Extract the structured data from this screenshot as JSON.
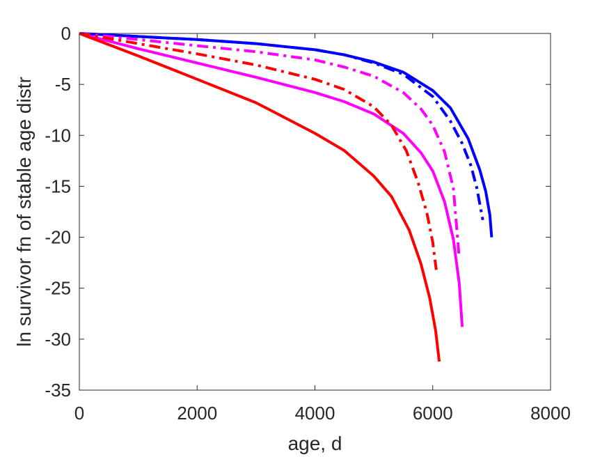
{
  "chart_data": {
    "type": "line",
    "title": "",
    "xlabel": "age, d",
    "ylabel": "ln survivor fn of stable age distr",
    "xlim": [
      0,
      8000
    ],
    "ylim": [
      -35,
      0
    ],
    "xticks": [
      0,
      2000,
      4000,
      6000,
      8000
    ],
    "yticks": [
      0,
      -5,
      -10,
      -15,
      -20,
      -25,
      -30,
      -35
    ],
    "xtick_labels": [
      "0",
      "2000",
      "4000",
      "6000",
      "8000"
    ],
    "ytick_labels": [
      "0",
      "-5",
      "-10",
      "-15",
      "-20",
      "-25",
      "-30",
      "-35"
    ],
    "grid": false,
    "legend": "none",
    "series": [
      {
        "color": "#0000ff",
        "dash": "solid",
        "x": [
          0,
          1000,
          2000,
          3000,
          4000,
          4500,
          5000,
          5500,
          6000,
          6300,
          6600,
          6800,
          6900,
          6970,
          7000
        ],
        "y": [
          0,
          -0.3,
          -0.6,
          -1.0,
          -1.6,
          -2.1,
          -2.8,
          -3.8,
          -5.6,
          -7.3,
          -10.3,
          -13.4,
          -15.5,
          -17.8,
          -20.0
        ]
      },
      {
        "color": "#0000ff",
        "dash": "dashdot",
        "x": [
          0,
          1000,
          2000,
          3000,
          4000,
          4500,
          5000,
          5500,
          6000,
          6300,
          6500,
          6650,
          6750,
          6850
        ],
        "y": [
          0,
          -0.3,
          -0.6,
          -1.0,
          -1.6,
          -2.1,
          -2.9,
          -4.0,
          -6.2,
          -8.6,
          -10.8,
          -13.0,
          -15.2,
          -18.3
        ]
      },
      {
        "color": "#ff00ff",
        "dash": "solid",
        "x": [
          0,
          1000,
          2000,
          3000,
          4000,
          4500,
          5000,
          5500,
          5800,
          6000,
          6200,
          6350,
          6450,
          6500
        ],
        "y": [
          0,
          -1.5,
          -2.9,
          -4.3,
          -5.8,
          -6.7,
          -7.9,
          -9.8,
          -11.7,
          -13.5,
          -16.5,
          -20.2,
          -24.5,
          -28.8
        ]
      },
      {
        "color": "#ff00ff",
        "dash": "dashdot",
        "x": [
          0,
          1000,
          2000,
          3000,
          4000,
          4500,
          5000,
          5500,
          5800,
          6000,
          6200,
          6350,
          6450
        ],
        "y": [
          0,
          -0.6,
          -1.2,
          -1.8,
          -2.6,
          -3.3,
          -4.2,
          -5.8,
          -7.4,
          -9.0,
          -11.6,
          -15.2,
          -22.0
        ]
      },
      {
        "color": "#ff0000",
        "dash": "solid",
        "x": [
          0,
          1000,
          2000,
          3000,
          4000,
          4500,
          5000,
          5300,
          5600,
          5800,
          5950,
          6050,
          6110
        ],
        "y": [
          0,
          -2.2,
          -4.5,
          -6.8,
          -9.8,
          -11.5,
          -14.0,
          -16.0,
          -19.3,
          -22.6,
          -26.0,
          -29.2,
          -32.2
        ]
      },
      {
        "color": "#ff0000",
        "dash": "dashdot",
        "x": [
          0,
          1000,
          2000,
          3000,
          4000,
          4500,
          5000,
          5300,
          5550,
          5750,
          5900,
          6000,
          6060
        ],
        "y": [
          0,
          -1.0,
          -2.0,
          -3.1,
          -4.5,
          -5.5,
          -7.2,
          -9.0,
          -11.5,
          -14.6,
          -17.6,
          -20.5,
          -23.2
        ]
      }
    ]
  }
}
